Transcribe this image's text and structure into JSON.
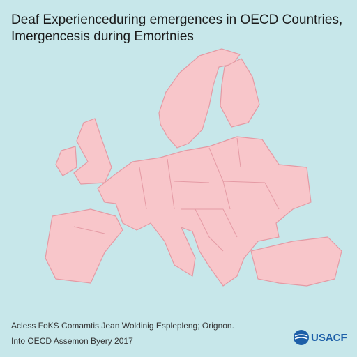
{
  "header": {
    "title_line1": "Deaf Experienceduring emergences in OECD Countries,",
    "title_line2": "Imergencesis during Emortnies"
  },
  "footer": {
    "line1": "Acless FoKS Comamtis Jean Woldinig Esplepleng; Orignon.",
    "line2": "Into OECD Assemon Byery 2017"
  },
  "logo": {
    "text": "USACF"
  }
}
